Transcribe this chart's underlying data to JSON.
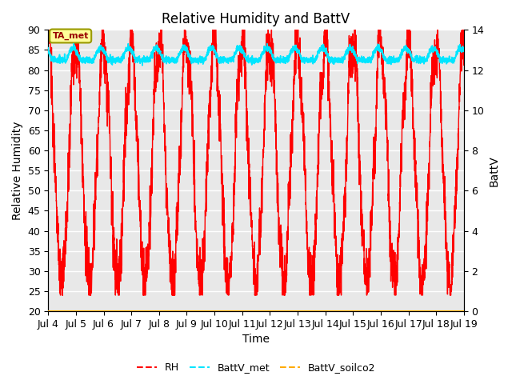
{
  "title": "Relative Humidity and BattV",
  "xlabel": "Time",
  "ylabel_left": "Relative Humidity",
  "ylabel_right": "BattV",
  "xlim_days": [
    4,
    19
  ],
  "ylim_left": [
    20,
    90
  ],
  "ylim_right": [
    0,
    14
  ],
  "yticks_left": [
    20,
    25,
    30,
    35,
    40,
    45,
    50,
    55,
    60,
    65,
    70,
    75,
    80,
    85,
    90
  ],
  "yticks_right": [
    0,
    2,
    4,
    6,
    8,
    10,
    12,
    14
  ],
  "xtick_labels": [
    "Jul 4",
    "Jul 5",
    "Jul 6",
    "Jul 7",
    "Jul 8",
    "Jul 9",
    "Jul 10",
    "Jul 11",
    "Jul 12",
    "Jul 13",
    "Jul 14",
    "Jul 15",
    "Jul 16",
    "Jul 17",
    "Jul 18",
    "Jul 19"
  ],
  "xtick_positions": [
    4,
    5,
    6,
    7,
    8,
    9,
    10,
    11,
    12,
    13,
    14,
    15,
    16,
    17,
    18,
    19
  ],
  "bg_color": "#e8e8e8",
  "grid_color": "#ffffff",
  "rh_color": "#ff0000",
  "battv_met_color": "#00e5ff",
  "battv_soilco2_color": "#ffaa00",
  "annotation_label": "TA_met",
  "annotation_bg": "#ffff99",
  "annotation_border": "#999900",
  "title_fontsize": 12,
  "axis_label_fontsize": 10,
  "tick_fontsize": 9
}
